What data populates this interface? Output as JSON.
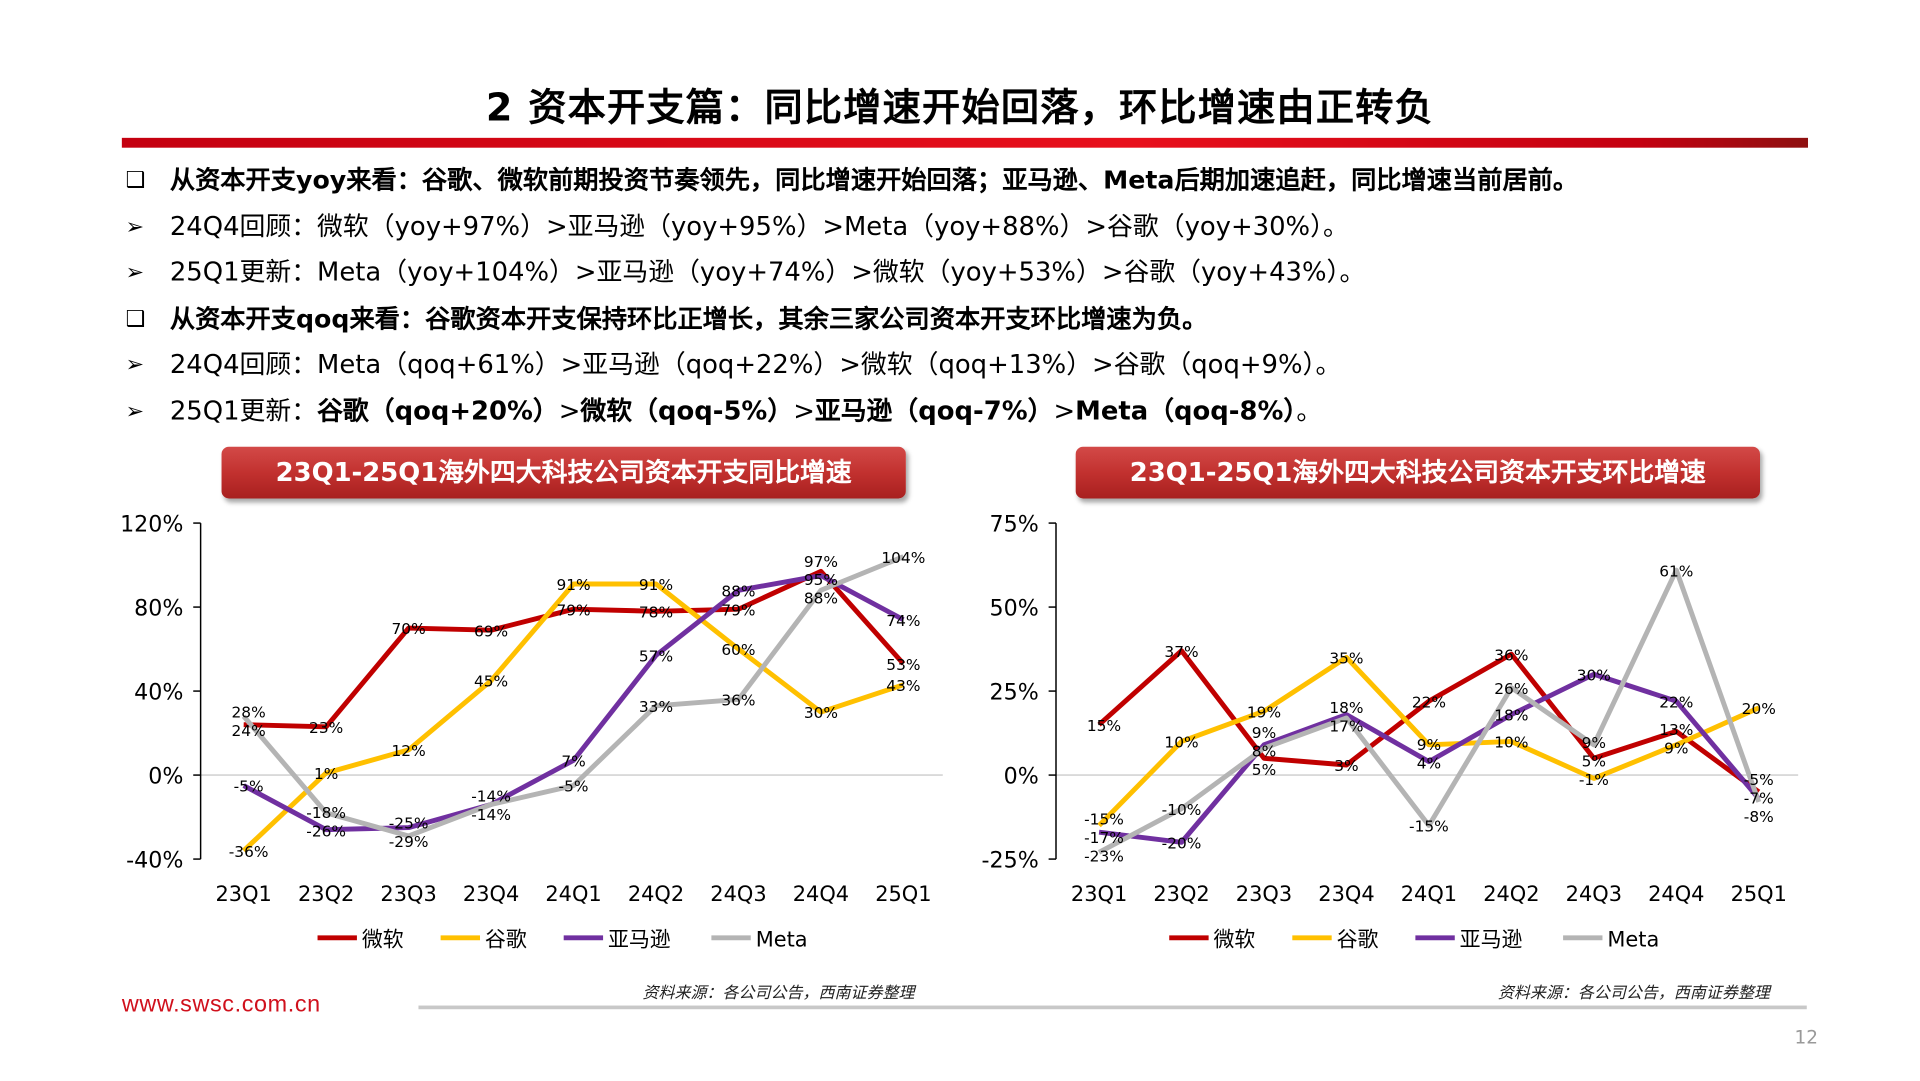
{
  "page": {
    "title": "2 资本开支篇：同比增速开始回落，环比增速由正转负",
    "lines": [
      {
        "marker": "❑",
        "style": "head",
        "segments": [
          {
            "text": "从资本开支yoy来看：谷歌、微软前期投资节奏领先，同比增速开始回落；亚马逊、Meta后期加速追赶，同比增速当前居前。",
            "bold": true
          }
        ]
      },
      {
        "marker": "➢",
        "style": "normal",
        "segments": [
          {
            "text": "24Q4回顾：微软（yoy+97%）>亚马逊（yoy+95%）>Meta（yoy+88%）>谷歌（yoy+30%）。",
            "bold": false
          }
        ]
      },
      {
        "marker": "➢",
        "style": "normal",
        "segments": [
          {
            "text": "25Q1更新：Meta（yoy+104%）>亚马逊（yoy+74%）>微软（yoy+53%）>谷歌（yoy+43%）。",
            "bold": false
          }
        ]
      },
      {
        "marker": "❑",
        "style": "head",
        "segments": [
          {
            "text": "从资本开支qoq来看：谷歌资本开支保持环比正增长，其余三家公司资本开支环比增速为负。",
            "bold": true
          }
        ]
      },
      {
        "marker": "➢",
        "style": "normal",
        "segments": [
          {
            "text": "24Q4回顾：Meta（qoq+61%）>亚马逊（qoq+22%）>微软（qoq+13%）>谷歌（qoq+9%）。",
            "bold": false
          }
        ]
      },
      {
        "marker": "➢",
        "style": "normal",
        "segments": [
          {
            "text": "25Q1更新：",
            "bold": false
          },
          {
            "text": "谷歌（qoq+20%）",
            "bold": true
          },
          {
            "text": ">",
            "bold": false
          },
          {
            "text": "微软（qoq-5%）",
            "bold": true
          },
          {
            "text": ">",
            "bold": false
          },
          {
            "text": "亚马逊（qoq-7%）",
            "bold": true
          },
          {
            "text": ">",
            "bold": false
          },
          {
            "text": "Meta（qoq-8%）",
            "bold": true
          },
          {
            "text": "。",
            "bold": false
          }
        ]
      }
    ],
    "footer": {
      "url": "www.swsc.com.cn",
      "source_left": "资料来源：各公司公告，西南证券整理",
      "source_right": "资料来源：各公司公告，西南证券整理",
      "page_number": "12"
    },
    "colors": {
      "accent": "#d0101c",
      "微软": "#c00000",
      "谷歌": "#ffc000",
      "亚马逊": "#7030a0",
      "Meta": "#b4b4b4"
    }
  },
  "chart_data": [
    {
      "type": "line",
      "title": "23Q1-25Q1海外四大科技公司资本开支同比增速",
      "categories": [
        "23Q1",
        "23Q2",
        "23Q3",
        "23Q4",
        "24Q1",
        "24Q2",
        "24Q3",
        "24Q4",
        "25Q1"
      ],
      "ylim": [
        -40,
        120
      ],
      "yticks": [
        "120%",
        "80%",
        "40%",
        "0%",
        "-40%"
      ],
      "ytick_values": [
        120,
        80,
        40,
        0,
        -40
      ],
      "legend": "bottom",
      "series": [
        {
          "name": "微软",
          "color": "#c00000",
          "values": [
            24,
            23,
            70,
            69,
            79,
            78,
            79,
            97,
            53
          ]
        },
        {
          "name": "谷歌",
          "color": "#ffc000",
          "values": [
            -36,
            1,
            12,
            45,
            91,
            91,
            60,
            30,
            43
          ]
        },
        {
          "name": "亚马逊",
          "color": "#7030a0",
          "values": [
            -5,
            -26,
            -25,
            -14,
            7,
            57,
            88,
            95,
            74
          ]
        },
        {
          "name": "Meta",
          "color": "#b4b4b4",
          "values": [
            28,
            -18,
            -29,
            -14,
            -5,
            33,
            36,
            88,
            104
          ]
        }
      ]
    },
    {
      "type": "line",
      "title": "23Q1-25Q1海外四大科技公司资本开支环比增速",
      "categories": [
        "23Q1",
        "23Q2",
        "23Q3",
        "23Q4",
        "24Q1",
        "24Q2",
        "24Q3",
        "24Q4",
        "25Q1"
      ],
      "ylim": [
        -25,
        75
      ],
      "yticks": [
        "75%",
        "50%",
        "25%",
        "0%",
        "-25%"
      ],
      "ytick_values": [
        75,
        50,
        25,
        0,
        -25
      ],
      "legend": "bottom",
      "series": [
        {
          "name": "微软",
          "color": "#c00000",
          "values": [
            15,
            37,
            5,
            3,
            22,
            36,
            5,
            13,
            -5
          ]
        },
        {
          "name": "谷歌",
          "color": "#ffc000",
          "values": [
            -15,
            10,
            19,
            35,
            9,
            10,
            -1,
            9,
            20
          ]
        },
        {
          "name": "亚马逊",
          "color": "#7030a0",
          "values": [
            -17,
            -20,
            9,
            18,
            4,
            18,
            30,
            22,
            -7
          ]
        },
        {
          "name": "Meta",
          "color": "#b4b4b4",
          "values": [
            -23,
            -10,
            8,
            17,
            -15,
            26,
            9,
            61,
            -8
          ]
        }
      ]
    }
  ]
}
